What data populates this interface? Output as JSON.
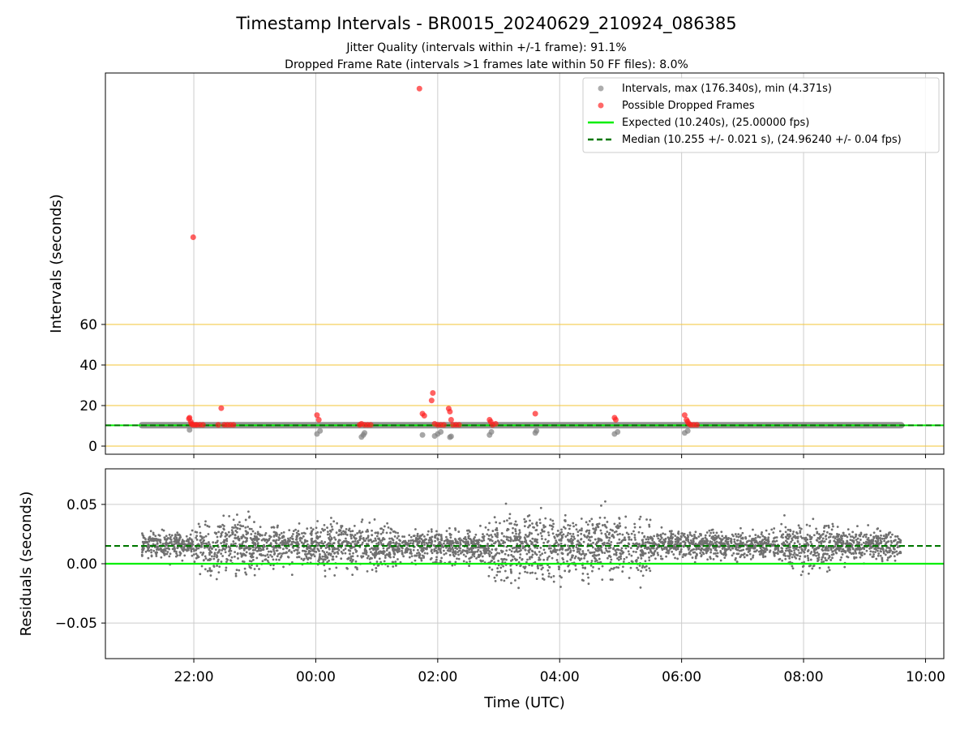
{
  "chart_data": [
    {
      "type": "scatter",
      "title": "Timestamp Intervals - BR0015_20240629_210924_086385",
      "subtitle_lines": [
        "Jitter Quality (intervals within +/-1 frame): 91.1%",
        "Dropped Frame Rate (intervals >1 frames late within 50 FF files): 8.0%"
      ],
      "xlabel": "",
      "ylabel": "Intervals (seconds)",
      "xlim_hours": [
        20.55,
        34.3
      ],
      "ylim": [
        -4,
        184
      ],
      "yticks": [
        0,
        20,
        40,
        60
      ],
      "grid": true,
      "orange_lines": [
        0,
        20,
        40,
        60
      ],
      "legend_position": "upper right",
      "legend": [
        {
          "label": "Intervals, max (176.340s), min (4.371s)",
          "kind": "dot",
          "color": "#999999"
        },
        {
          "label": "Possible Dropped Frames",
          "kind": "dot",
          "color": "#ff4d4d"
        },
        {
          "label": "Expected (10.240s), (25.00000 fps)",
          "kind": "line",
          "color": "#00ee00"
        },
        {
          "label": "Median (10.255 +/- 0.021 s), (24.96240 +/- 0.04 fps)",
          "kind": "dash",
          "color": "#007700"
        }
      ],
      "expected": 10.24,
      "median": 10.255,
      "x_range_hours": [
        21.15,
        33.6
      ],
      "series": [
        {
          "name": "Possible Dropped Frames",
          "points": [
            [
              21.92,
              13.5
            ],
            [
              21.93,
              14
            ],
            [
              21.95,
              12
            ],
            [
              21.96,
              11
            ],
            [
              21.98,
              10.5
            ],
            [
              21.99,
              103
            ],
            [
              22.02,
              10.5
            ],
            [
              22.05,
              10.5
            ],
            [
              22.1,
              10.5
            ],
            [
              22.15,
              10.5
            ],
            [
              22.4,
              10.5
            ],
            [
              22.45,
              18.7
            ],
            [
              22.5,
              10.5
            ],
            [
              22.55,
              10.5
            ],
            [
              22.6,
              10.5
            ],
            [
              22.65,
              10.5
            ],
            [
              24.02,
              15.3
            ],
            [
              24.05,
              13
            ],
            [
              24.72,
              10.5
            ],
            [
              24.75,
              11
            ],
            [
              24.8,
              10.5
            ],
            [
              24.85,
              10.5
            ],
            [
              24.9,
              10.5
            ],
            [
              25.7,
              176.3
            ],
            [
              25.75,
              16
            ],
            [
              25.78,
              15
            ],
            [
              25.9,
              22.5
            ],
            [
              25.92,
              26.2
            ],
            [
              25.95,
              11
            ],
            [
              26.0,
              10.5
            ],
            [
              26.05,
              10.5
            ],
            [
              26.1,
              10.5
            ],
            [
              26.18,
              18.5
            ],
            [
              26.2,
              17
            ],
            [
              26.22,
              13
            ],
            [
              26.25,
              10.5
            ],
            [
              26.3,
              10.5
            ],
            [
              26.35,
              10.5
            ],
            [
              26.85,
              13
            ],
            [
              26.87,
              12
            ],
            [
              26.9,
              10.5
            ],
            [
              26.95,
              11
            ],
            [
              27.6,
              16
            ],
            [
              28.9,
              14
            ],
            [
              28.92,
              13
            ],
            [
              30.05,
              15.3
            ],
            [
              30.08,
              13
            ],
            [
              30.1,
              12
            ],
            [
              30.12,
              11
            ],
            [
              30.15,
              10.5
            ],
            [
              30.2,
              10.5
            ],
            [
              30.25,
              10.5
            ]
          ]
        },
        {
          "name": "Intervals",
          "points": [
            [
              21.93,
              8
            ],
            [
              24.02,
              6
            ],
            [
              24.07,
              7.5
            ],
            [
              24.75,
              4.5
            ],
            [
              24.78,
              5.5
            ],
            [
              24.8,
              6.5
            ],
            [
              25.75,
              5.5
            ],
            [
              25.95,
              5
            ],
            [
              26.0,
              6
            ],
            [
              26.05,
              7
            ],
            [
              26.2,
              4.4
            ],
            [
              26.22,
              4.8
            ],
            [
              26.85,
              5.5
            ],
            [
              26.88,
              7
            ],
            [
              27.6,
              6.5
            ],
            [
              27.62,
              7.5
            ],
            [
              28.9,
              6
            ],
            [
              28.95,
              7
            ],
            [
              30.05,
              6.5
            ],
            [
              30.1,
              7.5
            ]
          ]
        }
      ]
    },
    {
      "type": "scatter",
      "xlabel": "Time (UTC)",
      "ylabel": "Residuals (seconds)",
      "xlim_hours": [
        20.55,
        34.3
      ],
      "ylim": [
        -0.08,
        0.08
      ],
      "yticks": [
        -0.05,
        0.0,
        0.05
      ],
      "ytick_labels": [
        "−0.05",
        "0.00",
        "0.05"
      ],
      "xticks_hours": [
        22,
        24,
        26,
        28,
        30,
        32,
        34
      ],
      "xtick_labels": [
        "22:00",
        "00:00",
        "02:00",
        "04:00",
        "06:00",
        "08:00",
        "10:00"
      ],
      "grid": true,
      "expected_residual": 0.0,
      "median_residual": 0.015,
      "residual_segments": [
        {
          "start": 21.15,
          "end": 22.0,
          "center": 0.016,
          "spread": 0.011
        },
        {
          "start": 22.0,
          "end": 23.0,
          "center": 0.015,
          "spread": 0.022
        },
        {
          "start": 23.0,
          "end": 24.0,
          "center": 0.016,
          "spread": 0.016
        },
        {
          "start": 24.0,
          "end": 25.3,
          "center": 0.015,
          "spread": 0.019
        },
        {
          "start": 25.3,
          "end": 26.8,
          "center": 0.015,
          "spread": 0.013
        },
        {
          "start": 26.8,
          "end": 28.0,
          "center": 0.014,
          "spread": 0.026
        },
        {
          "start": 28.0,
          "end": 29.5,
          "center": 0.015,
          "spread": 0.024
        },
        {
          "start": 29.5,
          "end": 31.6,
          "center": 0.016,
          "spread": 0.011
        },
        {
          "start": 31.6,
          "end": 32.5,
          "center": 0.015,
          "spread": 0.018
        },
        {
          "start": 32.5,
          "end": 33.6,
          "center": 0.016,
          "spread": 0.012
        }
      ]
    }
  ],
  "colors": {
    "interval": "#808080",
    "dropped": "#ff2020",
    "expected": "#00ee00",
    "median": "#007700",
    "orange_grid": "#f5c842",
    "grid": "#cccccc",
    "residual": "#707070"
  }
}
